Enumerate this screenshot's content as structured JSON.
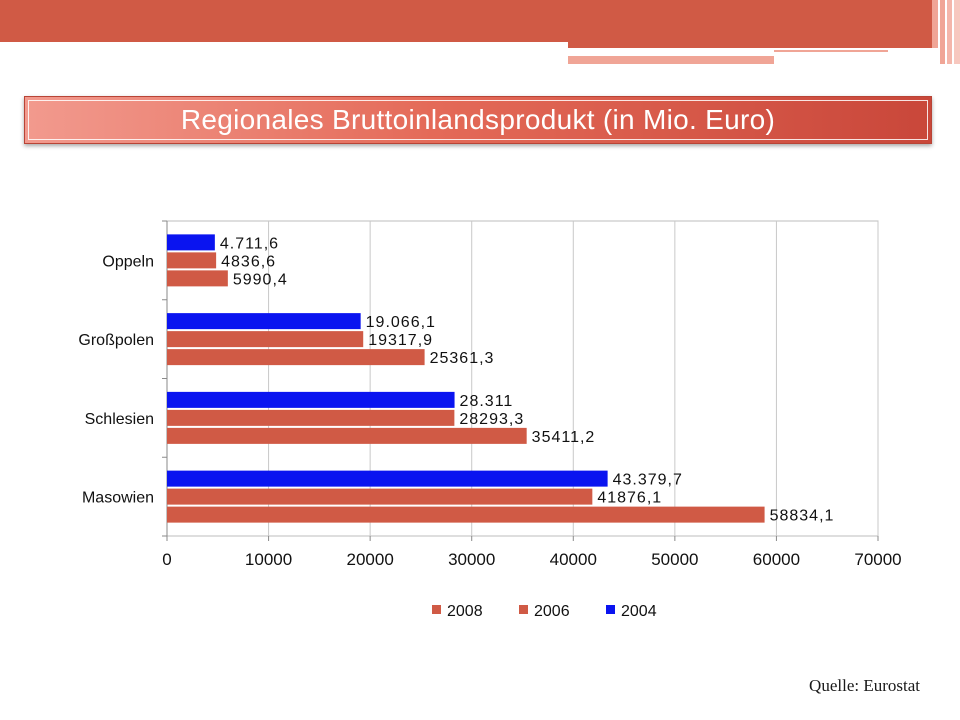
{
  "slide": {
    "title": "Regionales Bruttoinlandsprodukt (in Mio. Euro)",
    "source": "Quelle: Eurostat",
    "colors": {
      "accent": "#d05a45",
      "accent_light": "#f0a596"
    }
  },
  "chart_data": {
    "type": "bar",
    "orientation": "horizontal",
    "title": "Regionales Bruttoinlandsprodukt (in Mio. Euro)",
    "xlabel": "",
    "ylabel": "",
    "xlim": [
      0,
      70000
    ],
    "x_ticks": [
      0,
      10000,
      20000,
      30000,
      40000,
      50000,
      60000,
      70000
    ],
    "x_tick_labels": [
      "0",
      "10000",
      "20000",
      "30000",
      "40000",
      "50000",
      "60000",
      "70000"
    ],
    "grid": true,
    "legend_position": "bottom",
    "categories": [
      "Oppeln",
      "Großpolen",
      "Schlesien",
      "Masowien"
    ],
    "series": [
      {
        "name": "2004",
        "color": "#0a14f0",
        "values": [
          4711.6,
          19066.1,
          28311,
          43379.7
        ],
        "labels": [
          "4.711,6",
          "19.066,1",
          "28.311",
          "43.379,7"
        ]
      },
      {
        "name": "2006",
        "color": "#d05a45",
        "values": [
          4836.6,
          19317.9,
          28293.3,
          41876.1
        ],
        "labels": [
          "4836,6",
          "19317,9",
          "28293,3",
          "41876,1"
        ]
      },
      {
        "name": "2008",
        "color": "#d05a45",
        "values": [
          5990.4,
          25361.3,
          35411.2,
          58834.1
        ],
        "labels": [
          "5990,4",
          "25361,3",
          "35411,2",
          "58834,1"
        ]
      }
    ],
    "legend_order": [
      "2008",
      "2006",
      "2004"
    ]
  }
}
